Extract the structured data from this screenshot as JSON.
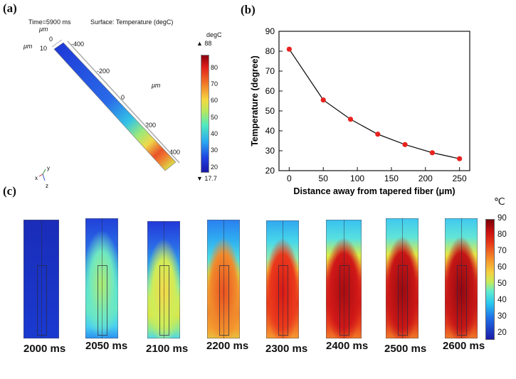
{
  "panel_a": {
    "label": "(a)",
    "time_text": "Time=5900 ms",
    "surface_text": "Surface: Temperature (degC)",
    "unit_top": "μm",
    "unit_left": "μm",
    "unit_right": "μm",
    "ticks_left": [
      "0",
      "10"
    ],
    "ticks_axis": [
      "-400",
      "-200",
      "0",
      "200",
      "400"
    ],
    "colorbar_unit": "degC",
    "max_marker": "▲ 88",
    "min_marker": "▼ 17.7",
    "colorbar_ticks": [
      "80",
      "70",
      "60",
      "50",
      "40",
      "30",
      "20"
    ],
    "triad": [
      "y",
      "x",
      "z"
    ]
  },
  "panel_b": {
    "label": "(b)",
    "marker_color": "#e8231f",
    "line_color": "#111111"
  },
  "panel_c": {
    "label": "(c)",
    "unit": "℃",
    "colorbar_ticks": [
      "90",
      "80",
      "70",
      "60",
      "50",
      "40",
      "30",
      "20"
    ],
    "times": [
      "2000 ms",
      "2050 ms",
      "2100 ms",
      "2200 ms",
      "2300 ms",
      "2400 ms",
      "2500 ms",
      "2600 ms"
    ]
  },
  "chart_data": {
    "type": "line",
    "title": "",
    "xlabel": "Distance away from tapered fiber (μm)",
    "ylabel": "Temperature (degree)",
    "x": [
      0,
      50,
      90,
      130,
      170,
      210,
      250
    ],
    "series": [
      {
        "values": [
          81,
          55.5,
          45.8,
          38.3,
          33.1,
          29.0,
          26.0
        ]
      }
    ],
    "xlim": [
      -15,
      265
    ],
    "ylim": [
      20,
      90
    ],
    "xticks": [
      "0",
      "50",
      "100",
      "150",
      "200",
      "250"
    ],
    "yticks": [
      "20",
      "30",
      "40",
      "50",
      "60",
      "70",
      "80",
      "90"
    ],
    "grid": false
  }
}
